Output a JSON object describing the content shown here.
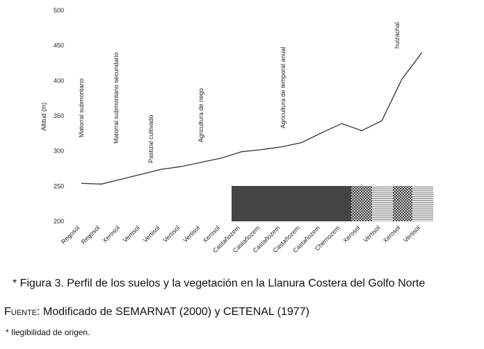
{
  "chart_data": {
    "type": "line",
    "y_label": "Altitud (m)",
    "categories": [
      "Regosol",
      "Regosol",
      "Xerosol",
      "Vertisol",
      "Vertisol",
      "Vertisol",
      "Vertisol",
      "Xerosol",
      "Castañozem",
      "Castañozem",
      "Castañozem",
      "Castañozem",
      "Castañozem",
      "Chernozem",
      "Xerosol",
      "Vertisol",
      "Xerosol",
      "Vertisol"
    ],
    "values": [
      254,
      253,
      260,
      267,
      274,
      278,
      284,
      290,
      299,
      302,
      306,
      312,
      326,
      339,
      329,
      343,
      402,
      440
    ],
    "color": "#333333",
    "ylim": [
      200,
      500
    ],
    "yticks": [
      200,
      250,
      300,
      350,
      400,
      450,
      500
    ],
    "annotations": [
      "Matorral submontano",
      "Matorral submontano secundario",
      "Pastizal cultivado",
      "Agricultura de riego",
      "Agricultura de temporal anual",
      "huizachal"
    ]
  },
  "caption": {
    "figure": "* Figura 3. Perfil de los suelos y la vegetación en la Llanura Costera del Golfo Norte",
    "source_lead": "Fuente:",
    "source": "Modificado de SEMARNAT (2000) y CETENAL (1977)",
    "note": "* Ilegibilidad de origen."
  }
}
